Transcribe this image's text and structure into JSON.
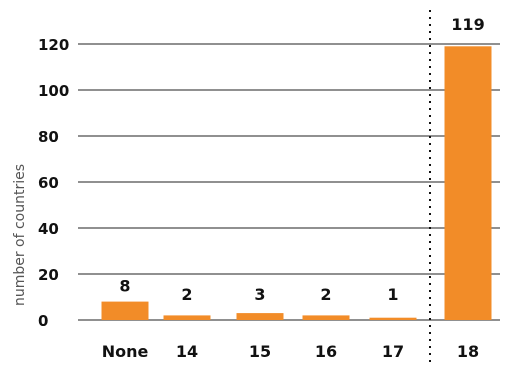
{
  "chart_data": {
    "type": "bar",
    "categories": [
      "None",
      "14",
      "15",
      "16",
      "17",
      "18"
    ],
    "values": [
      8,
      2,
      3,
      2,
      1,
      119
    ],
    "data_labels": [
      "8",
      "2",
      "3",
      "2",
      "1",
      "119"
    ],
    "ylabel": "number of countries",
    "xlabel": "",
    "yticks": [
      0,
      20,
      40,
      60,
      80,
      100,
      120
    ],
    "ylim": [
      0,
      120
    ],
    "grid": true,
    "bar_color": "#F28C28",
    "separator": "dotted vertical line between 17 and 18"
  }
}
